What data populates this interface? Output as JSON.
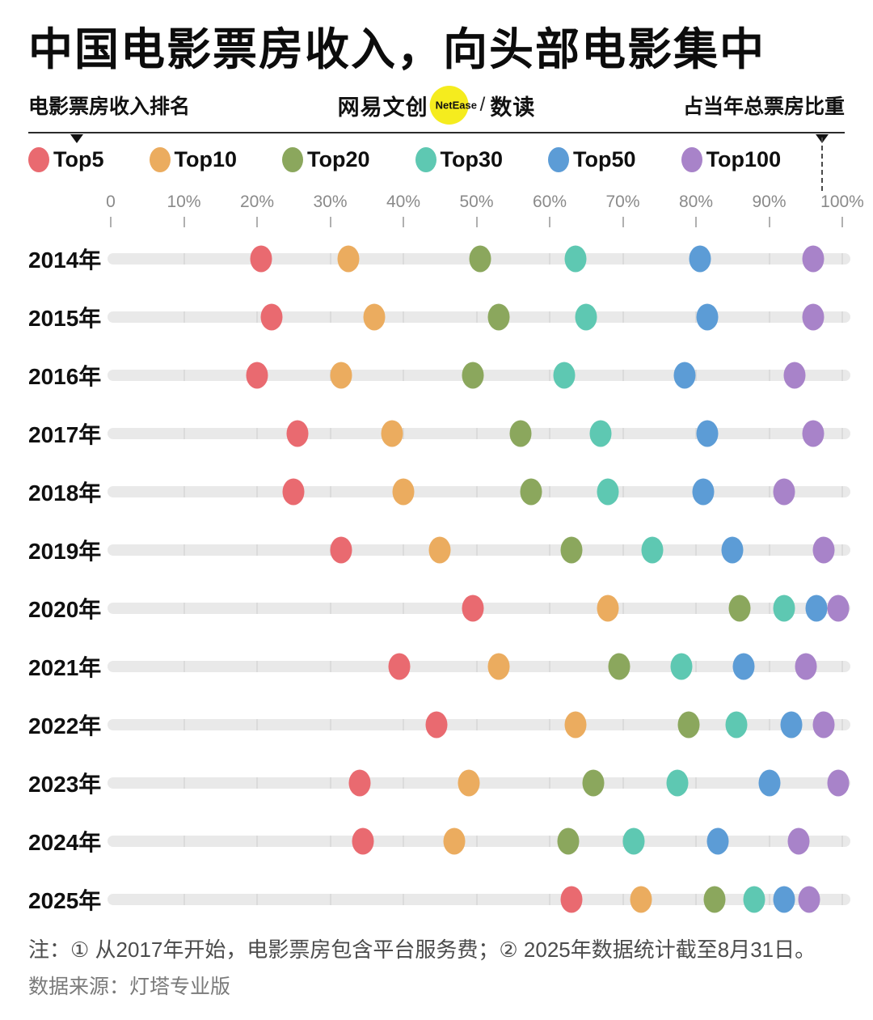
{
  "header": {
    "title": "中国电影票房收入，向头部电影集中",
    "left_label": "电影票房收入排名",
    "right_label": "占当年总票房比重",
    "logo": {
      "brand": "网易文创",
      "badge": "NetEase",
      "badge_color": "#F5EC1E",
      "separator": "/",
      "sub_brand": "数读"
    }
  },
  "chart_data": {
    "type": "scatter",
    "title": "中国电影票房收入，向头部电影集中",
    "xlabel": "占当年总票房比重",
    "ylabel": "电影票房收入排名",
    "xlim": [
      0,
      100
    ],
    "grid": false,
    "legend_position": "top",
    "x_ticks": [
      "0",
      "10%",
      "20%",
      "30%",
      "40%",
      "50%",
      "60%",
      "70%",
      "80%",
      "90%",
      "100%"
    ],
    "categories": [
      "2014年",
      "2015年",
      "2016年",
      "2017年",
      "2018年",
      "2019年",
      "2020年",
      "2021年",
      "2022年",
      "2023年",
      "2024年",
      "2025年"
    ],
    "series": [
      {
        "name": "Top5",
        "color": "#E96A70",
        "values": [
          20.5,
          22,
          20,
          25.5,
          25,
          31.5,
          49.5,
          39.5,
          44.5,
          34,
          34.5,
          63
        ]
      },
      {
        "name": "Top10",
        "color": "#EBAC5F",
        "values": [
          32.5,
          36,
          31.5,
          38.5,
          40,
          45,
          68,
          53,
          63.5,
          49,
          47,
          72.5
        ]
      },
      {
        "name": "Top20",
        "color": "#8BA75D",
        "values": [
          50.5,
          53,
          49.5,
          56,
          57.5,
          63,
          86,
          69.5,
          79,
          66,
          62.5,
          82.5
        ]
      },
      {
        "name": "Top30",
        "color": "#5EC8B2",
        "values": [
          63.5,
          65,
          62,
          67,
          68,
          74,
          92,
          78,
          85.5,
          77.5,
          71.5,
          88
        ]
      },
      {
        "name": "Top50",
        "color": "#5C9CD6",
        "values": [
          80.5,
          81.5,
          78.5,
          81.5,
          81,
          85,
          96.5,
          86.5,
          93,
          90,
          83,
          92
        ]
      },
      {
        "name": "Top100",
        "color": "#A883C9",
        "values": [
          96,
          96,
          93.5,
          96,
          92,
          97.5,
          99.5,
          95,
          97.5,
          99.5,
          94,
          95.5
        ]
      }
    ]
  },
  "footnote": {
    "note": "注：① 从2017年开始，电影票房包含平台服务费；② 2025年数据统计截至8月31日。",
    "source": "数据来源：灯塔专业版"
  }
}
